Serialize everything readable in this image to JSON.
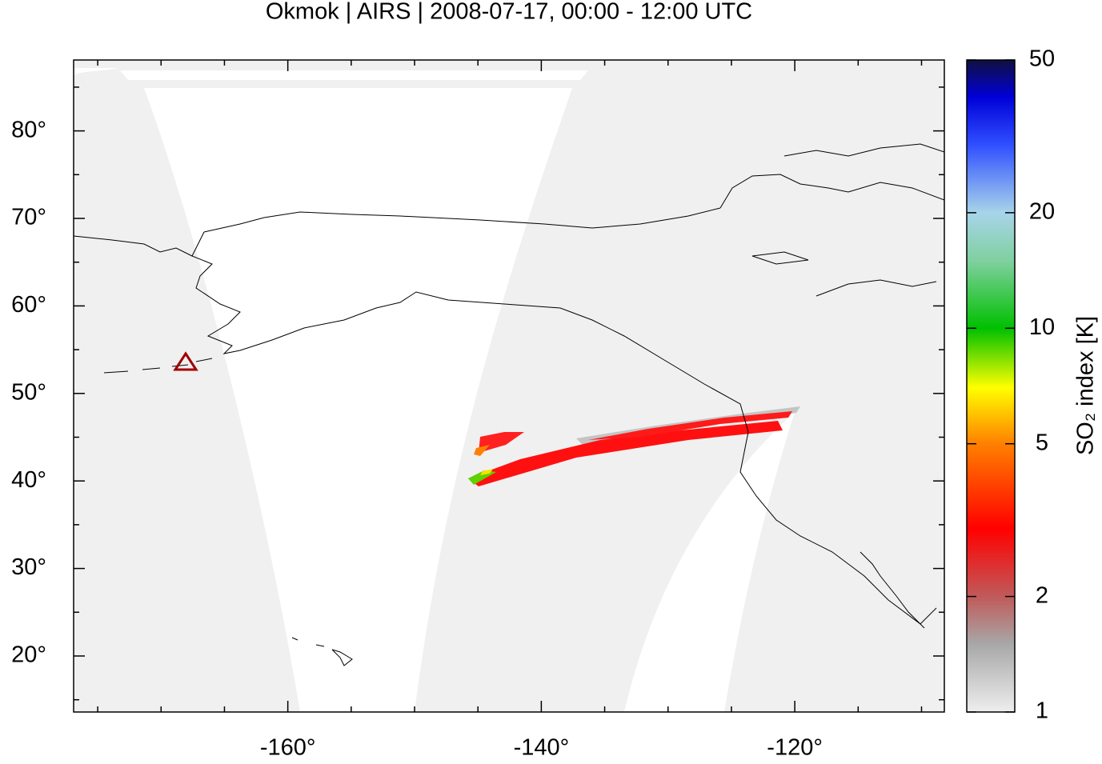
{
  "chart_data": {
    "type": "map",
    "title": "Okmok | AIRS | 2008-07-17, 00:00 - 12:00 UTC",
    "xlim": [
      -176.9,
      -108.2
    ],
    "ylim": [
      13.6,
      88.1
    ],
    "xticks": [
      {
        "value": -160,
        "label": "-160°"
      },
      {
        "value": -140,
        "label": "-140°"
      },
      {
        "value": -120,
        "label": "-120°"
      }
    ],
    "yticks": [
      {
        "value": 20,
        "label": "20°"
      },
      {
        "value": 30,
        "label": "30°"
      },
      {
        "value": 40,
        "label": "40°"
      },
      {
        "value": 50,
        "label": "50°"
      },
      {
        "value": 60,
        "label": "60°"
      },
      {
        "value": 70,
        "label": "70°"
      },
      {
        "value": 80,
        "label": "80°"
      }
    ],
    "xminorticks": [
      -175,
      -170,
      -165,
      -155,
      -150,
      -145,
      -135,
      -130,
      -125,
      -115,
      -110
    ],
    "yminorticks": [
      15,
      25,
      35,
      45,
      55,
      65,
      75,
      85
    ],
    "colorbar": {
      "label": "SO₂ index [K]",
      "log": true,
      "lim": [
        1,
        50
      ],
      "ticks": [
        1,
        2,
        5,
        10,
        20,
        50
      ],
      "colormap": [
        {
          "value": 1,
          "color": "#eeeeee"
        },
        {
          "value": 1.5,
          "color": "#a8a8a8"
        },
        {
          "value": 2,
          "color": "#c05a5a"
        },
        {
          "value": 3,
          "color": "#ff0000"
        },
        {
          "value": 5,
          "color": "#ff8000"
        },
        {
          "value": 7,
          "color": "#ffff00"
        },
        {
          "value": 10,
          "color": "#00c000"
        },
        {
          "value": 15,
          "color": "#80d0a0"
        },
        {
          "value": 20,
          "color": "#a8d4ea"
        },
        {
          "value": 30,
          "color": "#3050ff"
        },
        {
          "value": 40,
          "color": "#0000d8"
        },
        {
          "value": 50,
          "color": "#101040"
        }
      ]
    }
  }
}
